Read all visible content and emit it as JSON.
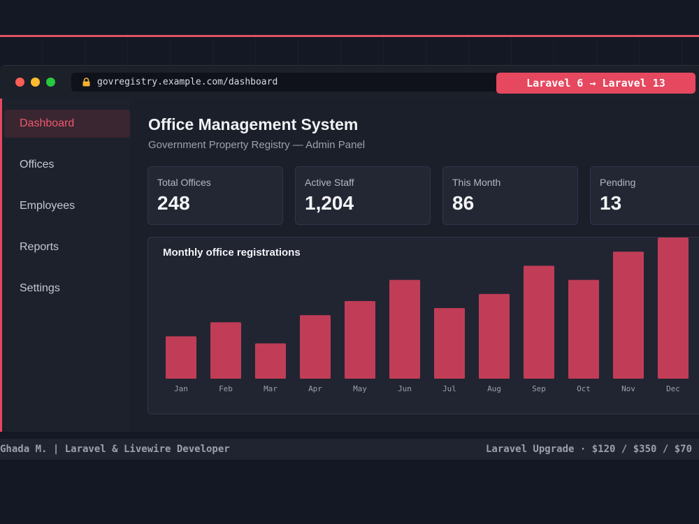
{
  "browser": {
    "url": "govregistry.example.com/dashboard",
    "badge": "Laravel 6  →  Laravel 13"
  },
  "sidebar": {
    "items": [
      {
        "label": "Dashboard",
        "active": true
      },
      {
        "label": "Offices",
        "active": false
      },
      {
        "label": "Employees",
        "active": false
      },
      {
        "label": "Reports",
        "active": false
      },
      {
        "label": "Settings",
        "active": false
      }
    ]
  },
  "header": {
    "title": "Office Management System",
    "subtitle": "Government Property Registry — Admin Panel"
  },
  "stats": [
    {
      "label": "Total Offices",
      "value": "248"
    },
    {
      "label": "Active Staff",
      "value": "1,204"
    },
    {
      "label": "This Month",
      "value": "86"
    },
    {
      "label": "Pending",
      "value": "13"
    }
  ],
  "chart_data": {
    "type": "bar",
    "title": "Monthly office registrations",
    "categories": [
      "Jan",
      "Feb",
      "Mar",
      "Apr",
      "May",
      "Jun",
      "Jul",
      "Aug",
      "Sep",
      "Oct",
      "Nov",
      "Dec"
    ],
    "values": [
      30,
      40,
      25,
      45,
      55,
      70,
      50,
      60,
      80,
      70,
      90,
      100
    ],
    "ylim": [
      0,
      100
    ],
    "bar_color": "#c13d57",
    "grid": false
  },
  "footer": {
    "left": "Ghada M.  |  Laravel & Livewire Developer",
    "right": "Laravel Upgrade  ·  $120 / $350 / $70"
  },
  "colors": {
    "accent": "#e5485f",
    "background": "#141824"
  }
}
